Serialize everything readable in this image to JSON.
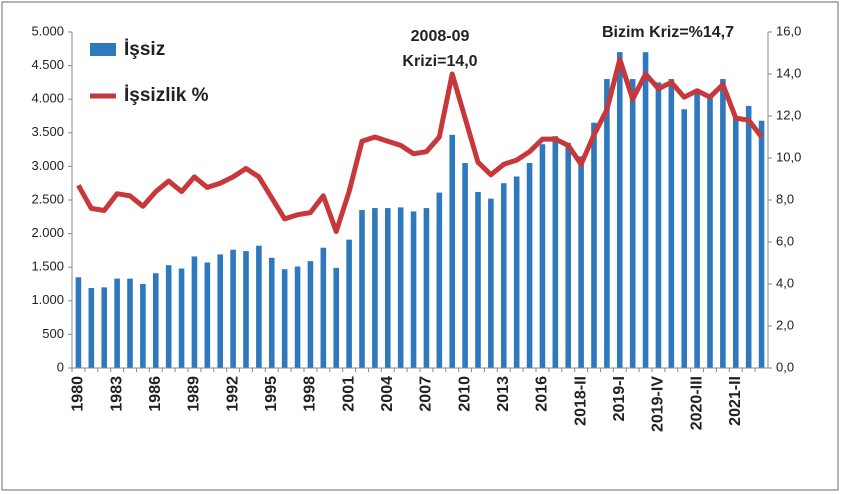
{
  "chart_data": {
    "type": "bar-line",
    "annotations": [
      "2008-09",
      "Krizi=14,0",
      "Bizim Kriz=%14,7"
    ],
    "legend": "upper-left",
    "categories": [
      "1980",
      null,
      null,
      "1983",
      null,
      null,
      "1986",
      null,
      null,
      "1989",
      null,
      null,
      "1992",
      null,
      null,
      "1995",
      null,
      null,
      "1998",
      null,
      null,
      "2001",
      null,
      null,
      "2004",
      null,
      null,
      "2007",
      null,
      null,
      "2010",
      null,
      null,
      "2013",
      null,
      null,
      "2016",
      null,
      null,
      "2018-II",
      null,
      null,
      "2019-I",
      null,
      null,
      "2019-IV",
      null,
      null,
      "2020-III",
      null,
      null,
      "2021-II",
      null,
      null
    ],
    "series": [
      {
        "name": "İşsiz",
        "type": "bar",
        "color": "#2e78bd",
        "values": [
          1350,
          1190,
          1200,
          1330,
          1330,
          1250,
          1410,
          1530,
          1480,
          1660,
          1570,
          1690,
          1760,
          1740,
          1820,
          1640,
          1470,
          1510,
          1590,
          1790,
          1490,
          1910,
          2350,
          2380,
          2380,
          2390,
          2330,
          2380,
          2610,
          3470,
          3050,
          2620,
          2520,
          2750,
          2850,
          3050,
          3330,
          3450,
          3350,
          3150,
          3650,
          4300,
          4700,
          4300,
          4700,
          4250,
          4300,
          3850,
          4100,
          4050,
          4300,
          3750,
          3900,
          3680
        ]
      },
      {
        "name": "İşsizlik %",
        "type": "line",
        "axis": "y2",
        "color": "#c8383a",
        "values": [
          8.7,
          7.6,
          7.5,
          8.3,
          8.2,
          7.7,
          8.4,
          8.9,
          8.4,
          9.1,
          8.6,
          8.8,
          9.1,
          9.5,
          9.1,
          8.1,
          7.1,
          7.3,
          7.4,
          8.2,
          6.5,
          8.4,
          10.8,
          11.0,
          10.8,
          10.6,
          10.2,
          10.3,
          11.0,
          14.0,
          11.9,
          9.8,
          9.2,
          9.7,
          9.9,
          10.3,
          10.9,
          10.9,
          10.6,
          9.7,
          11.1,
          12.3,
          14.7,
          12.8,
          14.0,
          13.3,
          13.6,
          12.9,
          13.2,
          12.9,
          13.5,
          11.9,
          11.8,
          11.0
        ]
      }
    ],
    "ylim": [
      0,
      5000
    ],
    "yticks": [
      0,
      500,
      {
        "value": 1000,
        "label": "1.000"
      },
      {
        "value": 1500,
        "label": "1.500"
      },
      {
        "value": 2000,
        "label": "2.000"
      },
      {
        "value": 2500,
        "label": "2.500"
      },
      {
        "value": 3000,
        "label": "3.000"
      },
      {
        "value": 3500,
        "label": "3.500"
      },
      {
        "value": 4000,
        "label": "4.000"
      },
      {
        "value": 4500,
        "label": "4.500"
      },
      {
        "value": 5000,
        "label": "5.000"
      }
    ],
    "y2lim": [
      0,
      16
    ],
    "y2ticks": [
      {
        "value": 0,
        "label": "0,0"
      },
      {
        "value": 2,
        "label": "2,0"
      },
      {
        "value": 4,
        "label": "4,0"
      },
      {
        "value": 6,
        "label": "6,0"
      },
      {
        "value": 8,
        "label": "8,0"
      },
      {
        "value": 10,
        "label": "10,0"
      },
      {
        "value": 12,
        "label": "12,0"
      },
      {
        "value": 14,
        "label": "14,0"
      },
      {
        "value": 16,
        "label": "16,0"
      }
    ]
  }
}
